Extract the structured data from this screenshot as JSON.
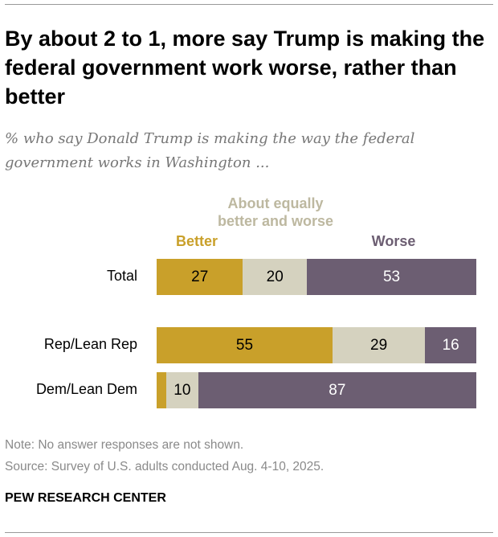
{
  "title": "By about 2 to 1, more say Trump is making the federal government work worse, rather than better",
  "subtitle": "% who say Donald Trump is making the way the federal government works in Washington ...",
  "chart_data": {
    "type": "bar",
    "orientation": "horizontal-stacked",
    "categories": [
      "Total",
      "Rep/Lean Rep",
      "Dem/Lean Dem"
    ],
    "series": [
      {
        "name": "Better",
        "values": [
          27,
          55,
          3
        ],
        "labels": [
          "27",
          "55",
          ""
        ],
        "color": "#C9A02A"
      },
      {
        "name": "About equally better and worse",
        "values": [
          20,
          29,
          10
        ],
        "labels": [
          "20",
          "29",
          "10"
        ],
        "color": "#D5D2BF"
      },
      {
        "name": "Worse",
        "values": [
          53,
          16,
          87
        ],
        "labels": [
          "53",
          "16",
          "87"
        ],
        "color": "#6C5E72"
      }
    ],
    "legend_colors": [
      "#C9A02A",
      "#BDB8A0",
      "#6C5E72"
    ],
    "xlim": [
      0,
      100
    ]
  },
  "note": "Note: No answer responses are not shown.",
  "source": "Source: Survey of U.S. adults conducted Aug. 4-10, 2025.",
  "brand": "PEW RESEARCH CENTER"
}
